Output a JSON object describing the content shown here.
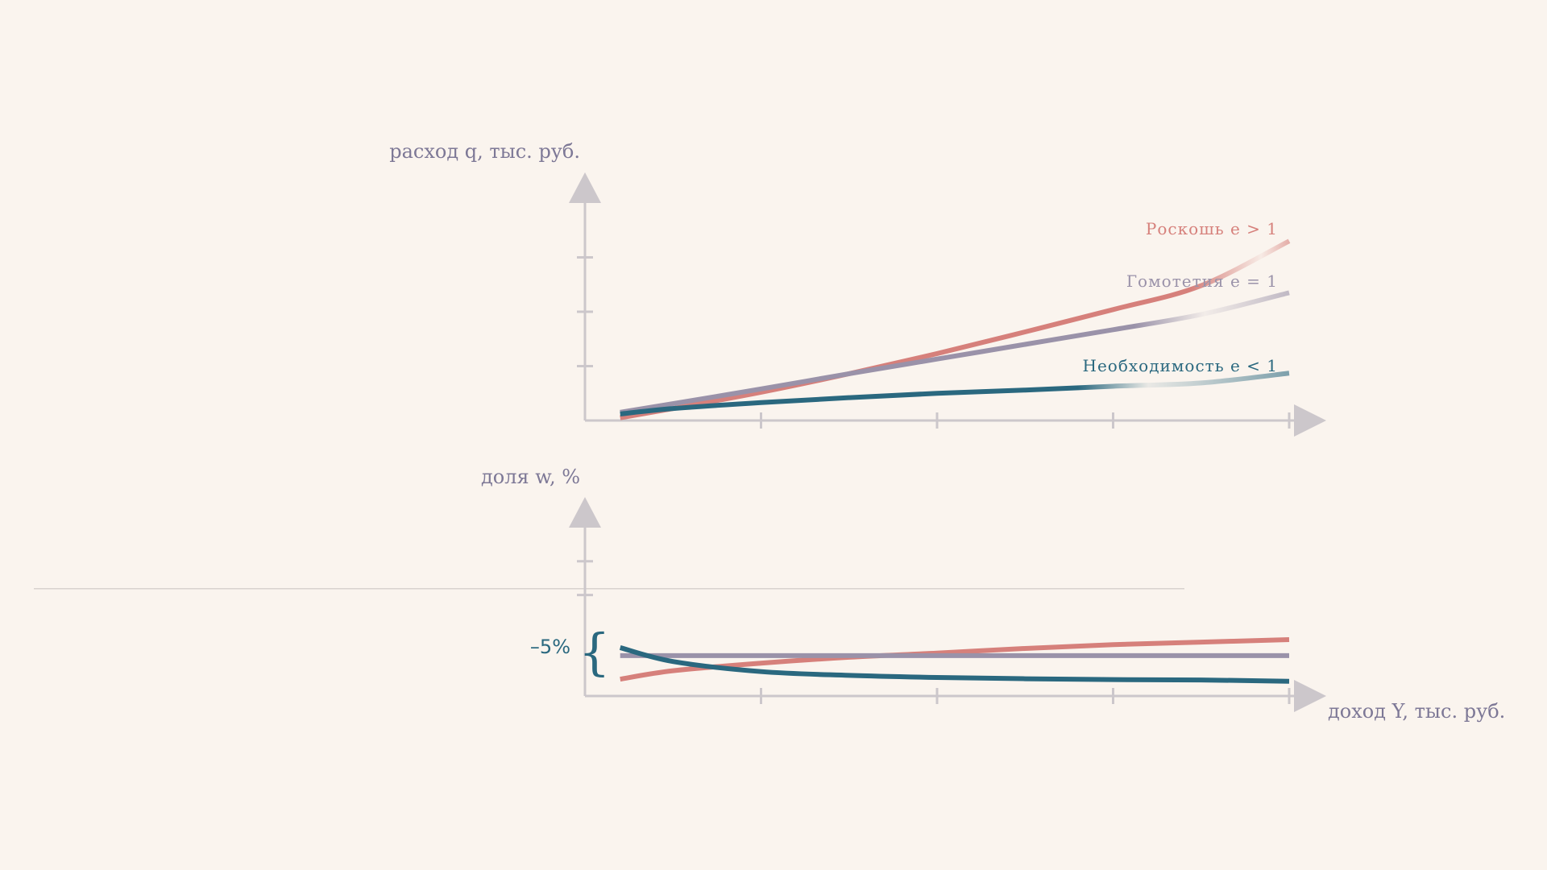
{
  "chart_data": [
    {
      "type": "line",
      "ylabel": "расход q, тыс. руб.",
      "xlabel": "",
      "x": [
        0.2,
        0.5,
        1.0,
        1.5,
        2.0,
        2.5,
        3.0,
        3.5,
        4.0
      ],
      "xlim": [
        0,
        4
      ],
      "ylim": [
        0,
        4
      ],
      "x_ticks": [
        1,
        2,
        3,
        4
      ],
      "y_ticks": [
        1,
        2,
        3
      ],
      "grid": false,
      "series": [
        {
          "name": "Роскошь e > 1",
          "color": "#d6807b",
          "values": [
            0.05,
            0.22,
            0.52,
            0.86,
            1.23,
            1.63,
            2.04,
            2.48,
            3.3
          ]
        },
        {
          "name": "Гомотетия e = 1",
          "color": "#9a92a9",
          "values": [
            0.15,
            0.31,
            0.58,
            0.86,
            1.13,
            1.4,
            1.67,
            1.95,
            2.35
          ]
        },
        {
          "name": "Необходимость e < 1",
          "color": "#2a687f",
          "values": [
            0.12,
            0.22,
            0.33,
            0.42,
            0.5,
            0.56,
            0.63,
            0.69,
            0.87
          ]
        }
      ]
    },
    {
      "type": "line",
      "ylabel": "доля w, %",
      "xlabel": "доход Y, тыс. руб.",
      "x": [
        0.2,
        0.5,
        1.0,
        1.5,
        2.0,
        2.5,
        3.0,
        3.5,
        4.0
      ],
      "xlim": [
        0,
        4
      ],
      "ylim": [
        0,
        4
      ],
      "x_ticks": [
        1,
        2,
        3,
        4
      ],
      "y_ticks": [
        2.4,
        3.2
      ],
      "reference_line_y": 2.55,
      "annotation": "–5%",
      "grid": false,
      "series": [
        {
          "name": "Роскошь e > 1",
          "color": "#d6807b",
          "values": [
            0.4,
            0.6,
            0.78,
            0.92,
            1.02,
            1.13,
            1.22,
            1.28,
            1.34
          ]
        },
        {
          "name": "Гомотетия e = 1",
          "color": "#9a92a9",
          "values": [
            0.96,
            0.96,
            0.96,
            0.96,
            0.96,
            0.96,
            0.96,
            0.96,
            0.96
          ]
        },
        {
          "name": "Необходимость e < 1",
          "color": "#2a687f",
          "values": [
            1.15,
            0.82,
            0.58,
            0.49,
            0.44,
            0.41,
            0.39,
            0.38,
            0.35
          ]
        }
      ]
    }
  ],
  "colors": {
    "axis": "#ccc7cb",
    "label": "#7d7896",
    "background": "#faf4ee"
  }
}
